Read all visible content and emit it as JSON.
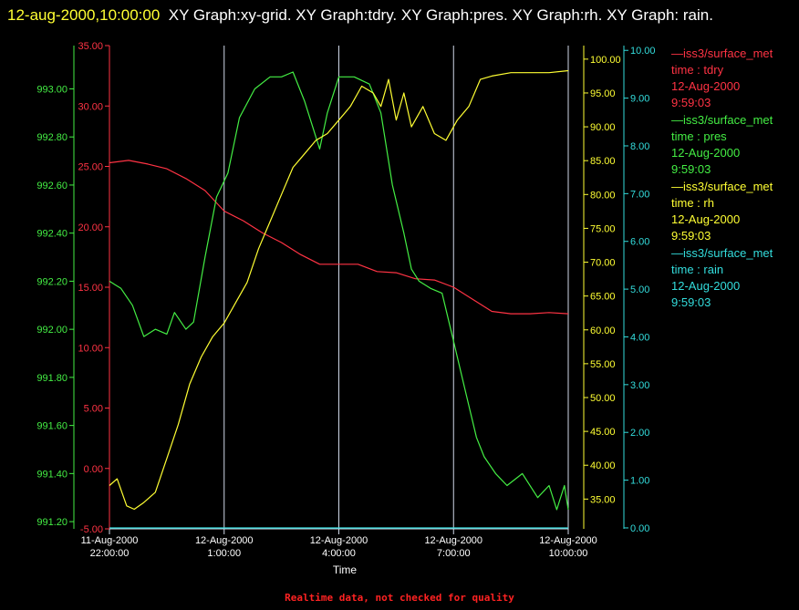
{
  "title": {
    "timestamp": "12-aug-2000,10:00:00",
    "text": "XY Graph:xy-grid.  XY Graph:tdry.  XY Graph:pres.  XY Graph:rh.  XY Graph: rain."
  },
  "footer": "Realtime data, not checked for quality",
  "legend": [
    {
      "name": "—iss3/surface_met",
      "var": "time : tdry",
      "date": "12-Aug-2000",
      "time": "9:59:03",
      "color": "#ff3344"
    },
    {
      "name": "—iss3/surface_met",
      "var": "time : pres",
      "date": "12-Aug-2000",
      "time": "9:59:03",
      "color": "#44ee44"
    },
    {
      "name": "—iss3/surface_met",
      "var": "time : rh",
      "date": "12-Aug-2000",
      "time": "9:59:03",
      "color": "#ffff33"
    },
    {
      "name": "—iss3/surface_met",
      "var": "time : rain",
      "date": "12-Aug-2000",
      "time": "9:59:03",
      "color": "#33dddd"
    }
  ],
  "chart_data": {
    "type": "line",
    "xlabel": "Time",
    "x_ticks": [
      {
        "l1": "11-Aug-2000",
        "l2": "22:00:00",
        "h": 0
      },
      {
        "l1": "12-Aug-2000",
        "l2": "1:00:00",
        "h": 3
      },
      {
        "l1": "12-Aug-2000",
        "l2": "4:00:00",
        "h": 6
      },
      {
        "l1": "12-Aug-2000",
        "l2": "7:00:00",
        "h": 9
      },
      {
        "l1": "12-Aug-2000",
        "l2": "10:00:00",
        "h": 12
      }
    ],
    "xlim": [
      0,
      12
    ],
    "axes": [
      {
        "id": "tdry",
        "color": "#ff3344",
        "ylim": [
          -5,
          35
        ],
        "ticks": [
          "-5.00",
          "0.00",
          "5.00",
          "10.00",
          "15.00",
          "20.00",
          "25.00",
          "30.00",
          "35.00"
        ],
        "tick_values": [
          -5,
          0,
          5,
          10,
          15,
          20,
          25,
          30,
          35
        ]
      },
      {
        "id": "pres",
        "color": "#44ee44",
        "ylim": [
          991.17,
          993.18
        ],
        "ticks": [
          "991.20",
          "991.40",
          "991.60",
          "991.80",
          "992.00",
          "992.20",
          "992.40",
          "992.60",
          "992.80",
          "993.00"
        ],
        "tick_values": [
          991.2,
          991.4,
          991.6,
          991.8,
          992.0,
          992.2,
          992.4,
          992.6,
          992.8,
          993.0
        ]
      },
      {
        "id": "rh",
        "color": "#ffff33",
        "ylim": [
          30.6,
          102
        ],
        "ticks": [
          "35.00",
          "40.00",
          "45.00",
          "50.00",
          "55.00",
          "60.00",
          "65.00",
          "70.00",
          "75.00",
          "80.00",
          "85.00",
          "90.00",
          "95.00",
          "100.00"
        ],
        "tick_values": [
          35,
          40,
          45,
          50,
          55,
          60,
          65,
          70,
          75,
          80,
          85,
          90,
          95,
          100
        ]
      },
      {
        "id": "rain",
        "color": "#33dddd",
        "ylim": [
          -0.02,
          10.1
        ],
        "ticks": [
          "0.00",
          "1.00",
          "2.00",
          "3.00",
          "4.00",
          "5.00",
          "6.00",
          "7.00",
          "8.00",
          "9.00",
          "10.00"
        ],
        "tick_values": [
          0,
          1,
          2,
          3,
          4,
          5,
          6,
          7,
          8,
          9,
          10
        ]
      }
    ],
    "series": [
      {
        "axis": "tdry",
        "color": "#ff3344",
        "x": [
          0,
          0.5,
          1,
          1.5,
          2,
          2.5,
          3,
          3.5,
          4,
          4.5,
          5,
          5.5,
          6,
          6.5,
          7,
          7.5,
          8,
          8.5,
          9,
          9.5,
          10,
          10.5,
          11,
          11.5,
          12
        ],
        "y": [
          25.3,
          25.5,
          25.2,
          24.8,
          24.0,
          23.0,
          21.3,
          20.5,
          19.5,
          18.7,
          17.7,
          16.9,
          16.9,
          16.9,
          16.3,
          16.2,
          15.7,
          15.6,
          15.0,
          14.0,
          13.0,
          12.8,
          12.8,
          12.9,
          12.8
        ]
      },
      {
        "axis": "pres",
        "color": "#44ee44",
        "x": [
          0,
          0.3,
          0.6,
          0.9,
          1.2,
          1.5,
          1.7,
          2.0,
          2.2,
          2.5,
          2.8,
          3.1,
          3.4,
          3.8,
          4.2,
          4.5,
          4.8,
          5.1,
          5.5,
          5.7,
          6.0,
          6.4,
          6.8,
          7.1,
          7.4,
          7.7,
          7.9,
          8.1,
          8.4,
          8.7,
          9.0,
          9.3,
          9.6,
          9.8,
          10.1,
          10.4,
          10.8,
          11.2,
          11.5,
          11.7,
          11.9,
          12.0
        ],
        "y": [
          992.2,
          992.17,
          992.1,
          991.97,
          992.0,
          991.98,
          992.07,
          992.0,
          992.03,
          992.3,
          992.55,
          992.65,
          992.88,
          993.0,
          993.05,
          993.05,
          993.07,
          992.95,
          992.75,
          992.9,
          993.05,
          993.05,
          993.02,
          992.9,
          992.6,
          992.4,
          992.25,
          992.2,
          992.17,
          992.15,
          991.95,
          991.75,
          991.55,
          991.47,
          991.4,
          991.35,
          991.4,
          991.3,
          991.35,
          991.25,
          991.35,
          991.25
        ]
      },
      {
        "axis": "rh",
        "color": "#ffff33",
        "x": [
          0,
          0.2,
          0.45,
          0.65,
          0.9,
          1.2,
          1.5,
          1.8,
          2.1,
          2.4,
          2.7,
          3.0,
          3.3,
          3.6,
          3.9,
          4.2,
          4.5,
          4.8,
          5.1,
          5.4,
          5.7,
          6.0,
          6.3,
          6.6,
          6.9,
          7.1,
          7.3,
          7.5,
          7.7,
          7.9,
          8.2,
          8.5,
          8.8,
          9.1,
          9.4,
          9.7,
          10.0,
          10.5,
          11.0,
          11.5,
          12.0
        ],
        "y": [
          37,
          38,
          34,
          33.5,
          34.5,
          36,
          41,
          46,
          52,
          56,
          59,
          61,
          64,
          67,
          72,
          76,
          80,
          84,
          86,
          88,
          89,
          91,
          93,
          96,
          95,
          93,
          97,
          91,
          95,
          90,
          93,
          89,
          88,
          91,
          93,
          97,
          97.5,
          98,
          98,
          98,
          98.3
        ]
      },
      {
        "axis": "rain",
        "color": "#33dddd",
        "x": [
          0,
          12
        ],
        "y": [
          0,
          0
        ]
      }
    ]
  }
}
